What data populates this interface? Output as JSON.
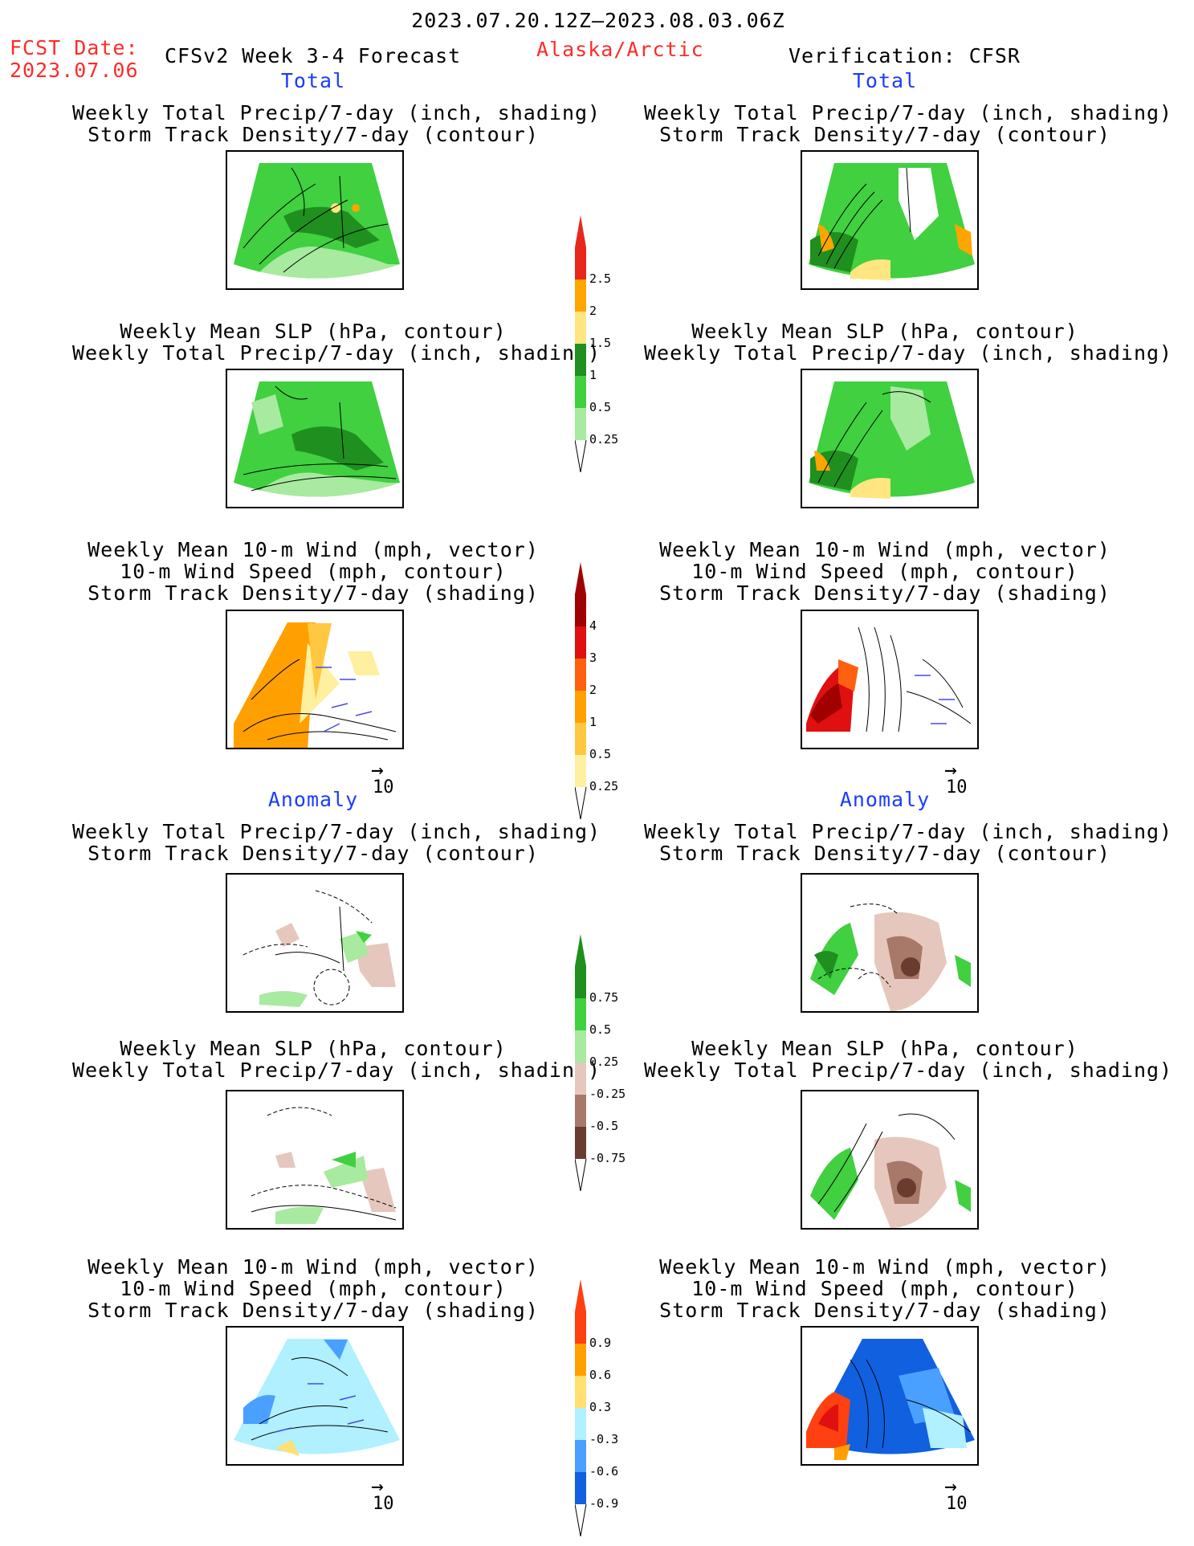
{
  "header": {
    "period": "2023.07.20.12Z–2023.08.03.06Z",
    "fcst_date_label": "FCST Date:",
    "fcst_date": "2023.07.06",
    "product": "CFSv2 Week 3-4 Forecast",
    "region": "Alaska/Arctic",
    "verification": "Verification: CFSR"
  },
  "sections": {
    "total": "Total",
    "anomaly": "Anomaly"
  },
  "titles": {
    "precip_track": [
      "Weekly Total Precip/7-day (inch, shading)",
      "Storm Track Density/7-day (contour)"
    ],
    "slp_precip": [
      "Weekly Mean SLP (hPa, contour)",
      "Weekly Total Precip/7-day (inch, shading)"
    ],
    "wind": [
      "Weekly Mean 10-m Wind (mph, vector)",
      "10-m Wind Speed (mph, contour)",
      "Storm Track Density/7-day (shading)"
    ]
  },
  "vector_ref": "10",
  "colorbars": {
    "precip_total": {
      "labels": [
        "2.5",
        "2",
        "1.5",
        "1",
        "0.5",
        "0.25"
      ],
      "colors": [
        "#e8281c",
        "#ffa500",
        "#ffe680",
        "#1f8f1f",
        "#40d040",
        "#a8eaa0"
      ]
    },
    "track_total": {
      "labels": [
        "4",
        "3",
        "2",
        "1",
        "0.5",
        "0.25"
      ],
      "colors": [
        "#a00000",
        "#e01010",
        "#ff6010",
        "#ffa000",
        "#ffc840",
        "#fff0a0"
      ]
    },
    "precip_anom": {
      "labels": [
        "0.75",
        "0.5",
        "0.25",
        "-0.25",
        "-0.5",
        "-0.75"
      ],
      "colors": [
        "#1f8f1f",
        "#40d040",
        "#a8eaa0",
        "#e6c7bd",
        "#a87868",
        "#6a3c30"
      ]
    },
    "track_anom": {
      "labels": [
        "0.9",
        "0.6",
        "0.3",
        "-0.3",
        "-0.6",
        "-0.9"
      ],
      "colors": [
        "#ff4010",
        "#ffa000",
        "#ffe070",
        "#b0f0ff",
        "#4aa0ff",
        "#1060e0"
      ]
    }
  }
}
